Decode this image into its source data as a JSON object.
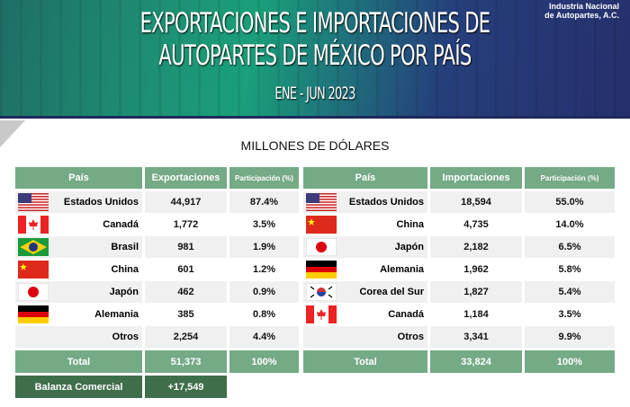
{
  "header": {
    "title_line1": "EXPORTACIONES E IMPORTACIONES DE",
    "title_line2": "AUTOPARTES DE MÉXICO POR PAÍS",
    "period": "ENE - JUN 2023",
    "org_line1": "Industria Nacional",
    "org_line2": "de Autopartes, A.C."
  },
  "subtitle": "MILLONES DE DÓLARES",
  "exports": {
    "headers": [
      "País",
      "Exportaciones",
      "Participación (%)"
    ],
    "rows": [
      {
        "country": "Estados Unidos",
        "flag": "us",
        "value": "44,917",
        "share": "87.4%"
      },
      {
        "country": "Canadá",
        "flag": "ca",
        "value": "1,772",
        "share": "3.5%"
      },
      {
        "country": "Brasil",
        "flag": "br",
        "value": "981",
        "share": "1.9%"
      },
      {
        "country": "China",
        "flag": "cn",
        "value": "601",
        "share": "1.2%"
      },
      {
        "country": "Japón",
        "flag": "jp",
        "value": "462",
        "share": "0.9%"
      },
      {
        "country": "Alemania",
        "flag": "de",
        "value": "385",
        "share": "0.8%"
      },
      {
        "country": "Otros",
        "flag": "",
        "value": "2,254",
        "share": "4.4%"
      }
    ],
    "total_label": "Total",
    "total_value": "51,373",
    "total_share": "100%",
    "balance_label": "Balanza Comercial",
    "balance_value": "+17,549"
  },
  "imports": {
    "headers": [
      "País",
      "Importaciones",
      "Participación (%)"
    ],
    "rows": [
      {
        "country": "Estados Unidos",
        "flag": "us",
        "value": "18,594",
        "share": "55.0%"
      },
      {
        "country": "China",
        "flag": "cn",
        "value": "4,735",
        "share": "14.0%"
      },
      {
        "country": "Japón",
        "flag": "jp",
        "value": "2,182",
        "share": "6.5%"
      },
      {
        "country": "Alemania",
        "flag": "de",
        "value": "1,962",
        "share": "5.8%"
      },
      {
        "country": "Corea del Sur",
        "flag": "kr",
        "value": "1,827",
        "share": "5.4%"
      },
      {
        "country": "Canadá",
        "flag": "ca",
        "value": "1,184",
        "share": "3.5%"
      },
      {
        "country": "Otros",
        "flag": "",
        "value": "3,341",
        "share": "9.9%"
      }
    ],
    "total_label": "Total",
    "total_value": "33,824",
    "total_share": "100%"
  }
}
